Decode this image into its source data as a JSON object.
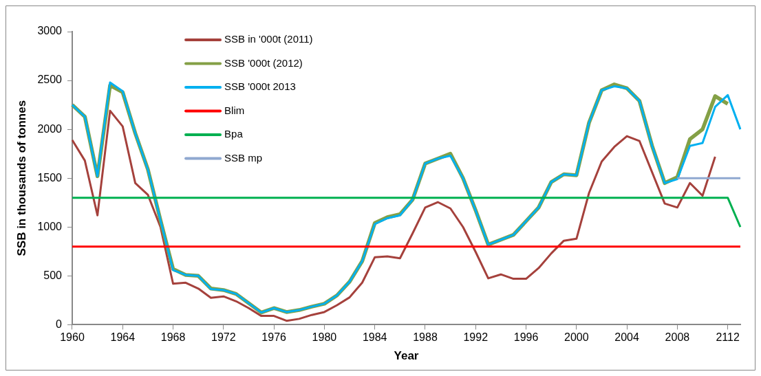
{
  "chart_data": {
    "type": "line",
    "categories": [
      "1960",
      null,
      null,
      null,
      "1964",
      null,
      null,
      null,
      "1968",
      null,
      null,
      null,
      "1972",
      null,
      null,
      null,
      "1976",
      null,
      null,
      null,
      "1980",
      null,
      null,
      null,
      "1984",
      null,
      null,
      null,
      "1988",
      null,
      null,
      null,
      "1992",
      null,
      null,
      null,
      "1996",
      null,
      null,
      null,
      "2000",
      null,
      null,
      null,
      "2004",
      null,
      null,
      null,
      "2008",
      null,
      null,
      null,
      "2112",
      null
    ],
    "xlabel": "Year",
    "ylabel": "SSB in thousands of tonnes",
    "ylim": [
      0,
      3000
    ],
    "yticks": [
      0,
      500,
      1000,
      1500,
      2000,
      2500,
      3000
    ],
    "grid": false,
    "legend": "top left",
    "marker": "none",
    "line_style": "solid",
    "series": [
      {
        "name": "SSB in '000t (2011)",
        "color": "#a5413c",
        "values": [
          1890,
          1680,
          1120,
          2190,
          2030,
          1450,
          1330,
          1000,
          420,
          430,
          370,
          275,
          290,
          240,
          170,
          90,
          90,
          40,
          60,
          100,
          130,
          200,
          280,
          430,
          690,
          700,
          680,
          935,
          1200,
          1255,
          1190,
          1000,
          745,
          475,
          515,
          470,
          470,
          580,
          730,
          860,
          880,
          1350,
          1670,
          1820,
          1930,
          1880,
          1560,
          1240,
          1200,
          1450,
          1320,
          1720,
          null,
          null
        ]
      },
      {
        "name": "SSB '000t (2012)",
        "color": "#84a046",
        "values": [
          2250,
          2130,
          1520,
          2450,
          2380,
          1960,
          1590,
          1070,
          570,
          510,
          500,
          370,
          355,
          315,
          220,
          125,
          170,
          130,
          150,
          185,
          215,
          300,
          440,
          650,
          1040,
          1100,
          1130,
          1280,
          1650,
          1700,
          1750,
          1500,
          1170,
          820,
          870,
          920,
          1060,
          1200,
          1460,
          1540,
          1530,
          2070,
          2400,
          2460,
          2420,
          2290,
          1830,
          1450,
          1510,
          1900,
          2000,
          2340,
          2260,
          null
        ]
      },
      {
        "name": "SSB '000t 2013",
        "color": "#00b0f0",
        "values": [
          2250,
          2130,
          1520,
          2480,
          2390,
          1960,
          1590,
          1070,
          560,
          510,
          500,
          365,
          355,
          315,
          220,
          125,
          170,
          130,
          150,
          185,
          215,
          300,
          440,
          650,
          1030,
          1090,
          1120,
          1280,
          1650,
          1700,
          1730,
          1500,
          1170,
          820,
          870,
          920,
          1060,
          1200,
          1460,
          1540,
          1530,
          2070,
          2400,
          2440,
          2420,
          2290,
          1830,
          1450,
          1490,
          1830,
          1860,
          2230,
          2350,
          2000
        ]
      },
      {
        "name": "Blim",
        "color": "#ff0000",
        "values": [
          800,
          800,
          800,
          800,
          800,
          800,
          800,
          800,
          800,
          800,
          800,
          800,
          800,
          800,
          800,
          800,
          800,
          800,
          800,
          800,
          800,
          800,
          800,
          800,
          800,
          800,
          800,
          800,
          800,
          800,
          800,
          800,
          800,
          800,
          800,
          800,
          800,
          800,
          800,
          800,
          800,
          800,
          800,
          800,
          800,
          800,
          800,
          800,
          800,
          800,
          800,
          800,
          800,
          800
        ]
      },
      {
        "name": "Bpa",
        "color": "#00b050",
        "values": [
          1300,
          1300,
          1300,
          1300,
          1300,
          1300,
          1300,
          1300,
          1300,
          1300,
          1300,
          1300,
          1300,
          1300,
          1300,
          1300,
          1300,
          1300,
          1300,
          1300,
          1300,
          1300,
          1300,
          1300,
          1300,
          1300,
          1300,
          1300,
          1300,
          1300,
          1300,
          1300,
          1300,
          1300,
          1300,
          1300,
          1300,
          1300,
          1300,
          1300,
          1300,
          1300,
          1300,
          1300,
          1300,
          1300,
          1300,
          1300,
          1300,
          1300,
          1300,
          1300,
          1300,
          1000
        ]
      },
      {
        "name": "SSB mp",
        "color": "#8fa8d0",
        "values": [
          null,
          null,
          null,
          null,
          null,
          null,
          null,
          null,
          null,
          null,
          null,
          null,
          null,
          null,
          null,
          null,
          null,
          null,
          null,
          null,
          null,
          null,
          null,
          null,
          null,
          null,
          null,
          null,
          null,
          null,
          null,
          null,
          null,
          null,
          null,
          null,
          null,
          null,
          null,
          null,
          null,
          null,
          null,
          null,
          null,
          null,
          null,
          null,
          1500,
          1500,
          1500,
          1500,
          1500,
          1500
        ]
      }
    ]
  }
}
